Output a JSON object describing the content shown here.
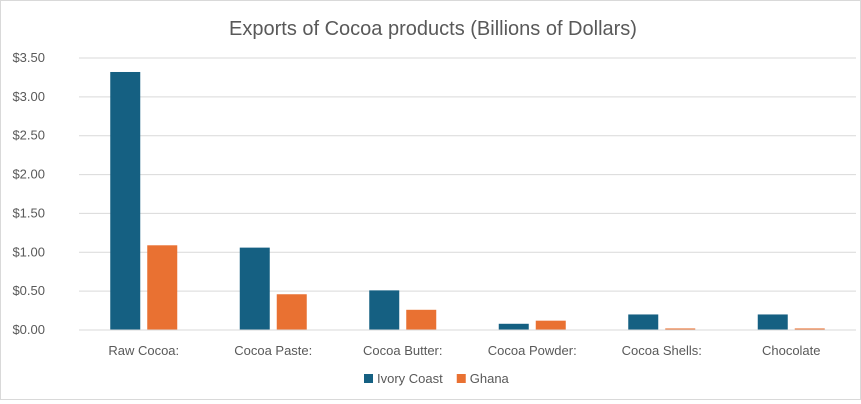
{
  "chart_data": {
    "type": "bar",
    "title": "Exports of Cocoa products (Billions of Dollars)",
    "xlabel": "",
    "ylabel": "",
    "categories": [
      "Raw Cocoa:",
      "Cocoa Paste:",
      "Cocoa Butter:",
      "Cocoa Powder:",
      "Cocoa Shells:",
      "Chocolate"
    ],
    "series": [
      {
        "name": "Ivory  Coast",
        "color": "#156082",
        "values": [
          3.32,
          1.06,
          0.51,
          0.08,
          0.2,
          0.2
        ]
      },
      {
        "name": "Ghana",
        "color": "#E97132",
        "values": [
          1.09,
          0.46,
          0.26,
          0.12,
          0.02,
          0.02
        ]
      }
    ],
    "ylim": [
      0,
      3.5
    ],
    "yticks": [
      0,
      0.5,
      1,
      1.5,
      2,
      2.5,
      3,
      3.5
    ],
    "ytick_labels": [
      "$0.00",
      "$0.50",
      "$1.00",
      "$1.50",
      "$2.00",
      "$2.50",
      "$3.00",
      "$3.50"
    ],
    "grid": true,
    "legend_position": "bottom"
  }
}
